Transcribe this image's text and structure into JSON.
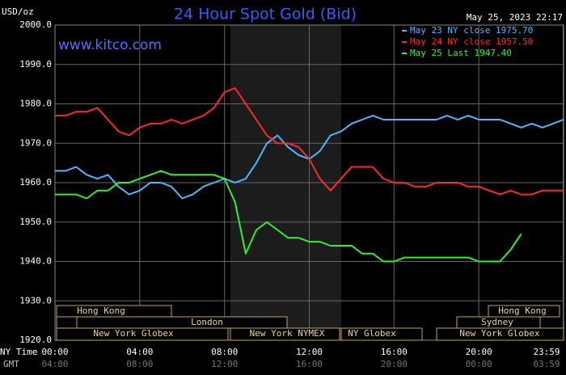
{
  "chart_data": {
    "type": "line",
    "title": "24 Hour Spot Gold (Bid)",
    "timestamp": "May 25, 2023 22:17",
    "y_label": "USD/oz",
    "website": "www.kitco.com",
    "x_label": "NY Time",
    "x2_label": "GMT",
    "x": [
      0,
      0.5,
      1,
      1.5,
      2,
      2.5,
      3,
      3.5,
      4,
      4.5,
      5,
      5.5,
      6,
      6.5,
      7,
      7.5,
      8,
      8.5,
      9,
      9.5,
      10,
      10.5,
      11,
      11.5,
      12,
      12.5,
      13,
      13.5,
      14,
      14.5,
      15,
      15.5,
      16,
      16.5,
      17,
      17.5,
      18,
      18.5,
      19,
      19.5,
      20,
      20.5,
      21,
      21.5,
      22,
      22.5,
      23,
      23.5,
      24
    ],
    "series": [
      {
        "name": "May 23 NY close 1975.70",
        "color": "#4fb8ff",
        "values": [
          1963,
          1963,
          1964,
          1962,
          1961,
          1962,
          1959,
          1957,
          1958,
          1960,
          1960,
          1959,
          1956,
          1957,
          1959,
          1960,
          1961,
          1960,
          1961,
          1965,
          1970,
          1972,
          1969,
          1967,
          1966,
          1968,
          1972,
          1973,
          1975,
          1976,
          1977,
          1976,
          1976,
          1976,
          1976,
          1976,
          1976,
          1977,
          1976,
          1977,
          1976,
          1976,
          1976,
          1975,
          1974,
          1975,
          1974,
          1975,
          1976
        ]
      },
      {
        "name": "May 24 NY close 1957.50",
        "color": "#ff2a2a",
        "values": [
          1977,
          1977,
          1978,
          1978,
          1979,
          1976,
          1973,
          1972,
          1974,
          1975,
          1975,
          1976,
          1975,
          1976,
          1977,
          1979,
          1983,
          1984,
          1980,
          1976,
          1972,
          1970,
          1970,
          1969,
          1966,
          1961,
          1958,
          1961,
          1964,
          1964,
          1964,
          1961,
          1960,
          1960,
          1959,
          1959,
          1960,
          1960,
          1960,
          1959,
          1959,
          1958,
          1957,
          1958,
          1957,
          1957,
          1958,
          1958,
          1958
        ]
      },
      {
        "name": "May 25 Last 1947.40",
        "color": "#33ee33",
        "values": [
          1957,
          1957,
          1957,
          1956,
          1958,
          1958,
          1960,
          1960,
          1961,
          1962,
          1963,
          1962,
          1962,
          1962,
          1962,
          1962,
          1961,
          1955,
          1942,
          1948,
          1950,
          1948,
          1946,
          1946,
          1945,
          1945,
          1944,
          1944,
          1944,
          1942,
          1942,
          1940,
          1940,
          1941,
          1941,
          1941,
          1941,
          1941,
          1941,
          1941,
          1940,
          1940,
          1940,
          1943,
          1947,
          null,
          null,
          null,
          null
        ]
      }
    ],
    "xlim": [
      0,
      24
    ],
    "xticks": [
      {
        "value": 0,
        "label": "00:00"
      },
      {
        "value": 4,
        "label": "04:00"
      },
      {
        "value": 8,
        "label": "08:00"
      },
      {
        "value": 12,
        "label": "12:00"
      },
      {
        "value": 16,
        "label": "16:00"
      },
      {
        "value": 20,
        "label": "20:00"
      },
      {
        "value": 23.98,
        "label": "23:59"
      }
    ],
    "x2ticks": [
      {
        "value": 0,
        "label": "04:00"
      },
      {
        "value": 4,
        "label": "08:00"
      },
      {
        "value": 8,
        "label": "12:00"
      },
      {
        "value": 12,
        "label": "16:00"
      },
      {
        "value": 16,
        "label": "20:00"
      },
      {
        "value": 20,
        "label": "00:00"
      },
      {
        "value": 23.98,
        "label": "03:59"
      }
    ],
    "ylim": [
      1920,
      2000
    ],
    "yticks": [
      {
        "value": 1920,
        "label": "1920.0"
      },
      {
        "value": 1930,
        "label": "1930.0"
      },
      {
        "value": 1940,
        "label": "1940.0"
      },
      {
        "value": 1950,
        "label": "1950.0"
      },
      {
        "value": 1960,
        "label": "1960.0"
      },
      {
        "value": 1970,
        "label": "1970.0"
      },
      {
        "value": 1980,
        "label": "1980.0"
      },
      {
        "value": 1990,
        "label": "1990.0"
      },
      {
        "value": 2000,
        "label": "2000.0"
      }
    ],
    "grid": true,
    "sessions": [
      "Hong Kong",
      "London",
      "New York Globex",
      "New York NYMEX",
      "NY Globex",
      "Sydney",
      "Hong Kong",
      "New York Globex"
    ]
  }
}
